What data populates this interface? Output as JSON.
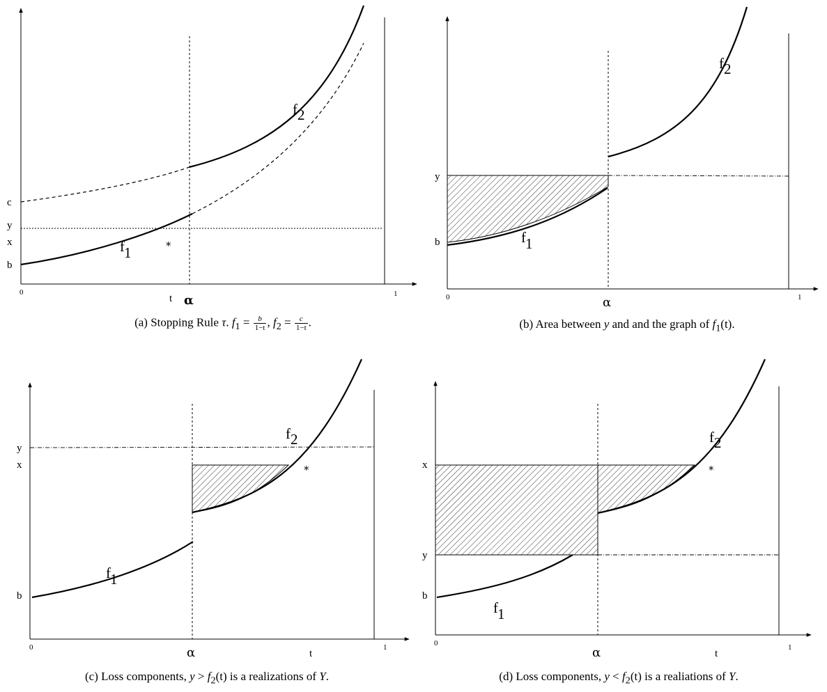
{
  "panels": {
    "a": {
      "caption_prefix": "(a) Stopping Rule ",
      "caption_tau": "τ",
      "caption_dot": ". ",
      "caption_f1": "f",
      "caption_f1_sub": "1",
      "caption_eq": " = ",
      "caption_f1_num": "b",
      "caption_den": "1−t",
      "caption_comma": ", ",
      "caption_f2": "f",
      "caption_f2_sub": "2",
      "caption_f2_num": "c",
      "caption_end": ".",
      "y_labels": [
        "c",
        "y",
        "x",
        "b"
      ],
      "x_labels": {
        "zero": "0",
        "t": "t",
        "alpha": "α",
        "one": "1"
      },
      "curve_labels": {
        "f1": "f",
        "f1_sub": "1",
        "f2": "f",
        "f2_sub": "2"
      },
      "marker": "*"
    },
    "b": {
      "caption": "(b) Area between ",
      "caption_y": "y",
      "caption_mid": " and and the graph of ",
      "caption_f": "f",
      "caption_f_sub": "1",
      "caption_t": "(t).",
      "y_labels": [
        "y",
        "b"
      ],
      "x_labels": {
        "zero": "0",
        "alpha": "α",
        "one": "1"
      },
      "curve_labels": {
        "f1": "f",
        "f1_sub": "1",
        "f2": "f",
        "f2_sub": "2"
      }
    },
    "c": {
      "caption_prefix": "(c) Loss components, ",
      "caption_y": "y",
      "caption_rel": " > ",
      "caption_f": "f",
      "caption_f_sub": "2",
      "caption_t": "(t)",
      "caption_suffix": " is a realizations of ",
      "caption_Y": "Y",
      "caption_end": ".",
      "y_labels": [
        "y",
        "x",
        "b"
      ],
      "x_labels": {
        "zero": "0",
        "alpha": "α",
        "t": "t",
        "one": "1"
      },
      "curve_labels": {
        "f1": "f",
        "f1_sub": "1",
        "f2": "f",
        "f2_sub": "2"
      },
      "marker": "*"
    },
    "d": {
      "caption_prefix": "(d) Loss components, ",
      "caption_y": "y",
      "caption_rel": " < ",
      "caption_f": "f",
      "caption_f_sub": "2",
      "caption_t": "(t)",
      "caption_suffix": " is a realiations of ",
      "caption_Y": "Y",
      "caption_end": ".",
      "y_labels": [
        "x",
        "y",
        "b"
      ],
      "x_labels": {
        "zero": "0",
        "alpha": "α",
        "t": "t",
        "one": "1"
      },
      "curve_labels": {
        "f1": "f",
        "f1_sub": "1",
        "f2": "f",
        "f2_sub": "2"
      },
      "marker": "*"
    }
  }
}
